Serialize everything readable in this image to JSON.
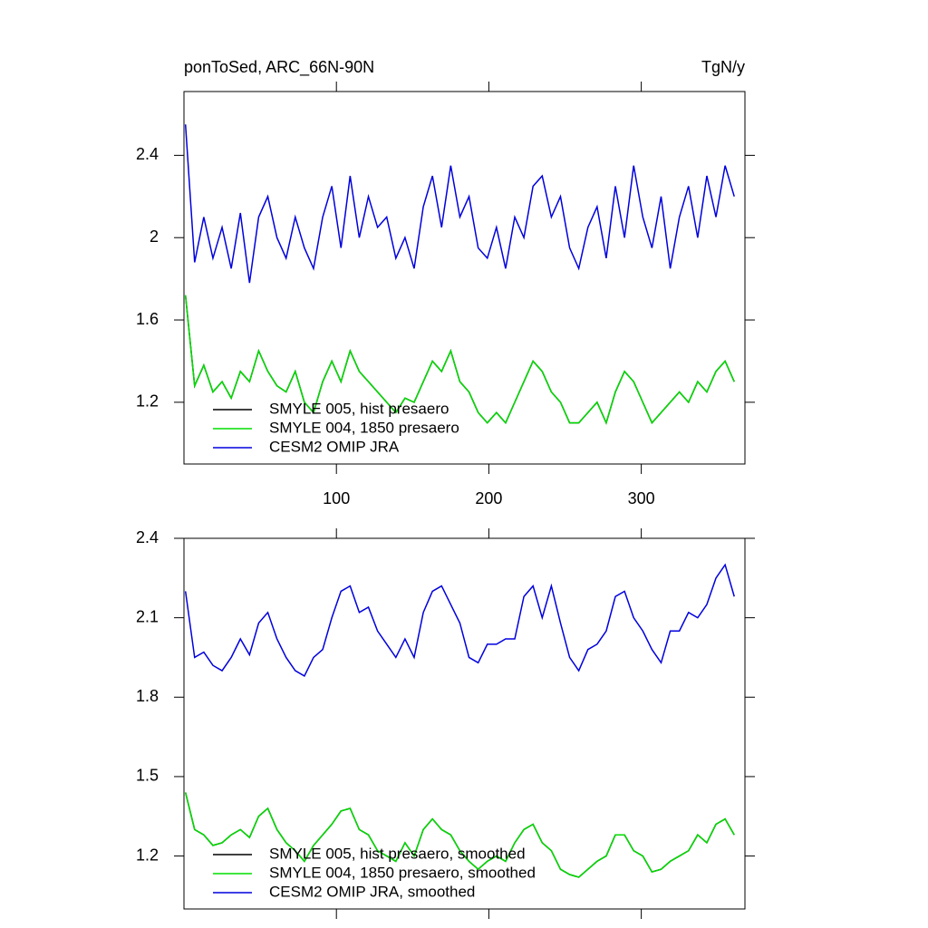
{
  "chart_data": [
    {
      "type": "line",
      "title": "ponToSed, ARC_66N-90N",
      "units_label": "TgN/y",
      "x": [
        1,
        7,
        13,
        19,
        25,
        31,
        37,
        43,
        49,
        55,
        61,
        67,
        73,
        79,
        85,
        91,
        97,
        103,
        109,
        115,
        121,
        127,
        133,
        139,
        145,
        151,
        157,
        163,
        169,
        175,
        181,
        187,
        193,
        199,
        205,
        211,
        217,
        223,
        229,
        235,
        241,
        247,
        253,
        259,
        265,
        271,
        277,
        283,
        289,
        295,
        301,
        307,
        313,
        319,
        325,
        331,
        337,
        343,
        349,
        355,
        361
      ],
      "xlim": [
        0,
        368
      ],
      "xticks": [
        100,
        200,
        300
      ],
      "xtick_labels": true,
      "ylim": [
        0.9,
        2.71
      ],
      "yticks": [
        1.2,
        1.6,
        2.0,
        2.4
      ],
      "legend": "lower left",
      "series": [
        {
          "name": "SMYLE 005, hist presaero",
          "color": "#000000",
          "values": [
            1.72,
            1.28,
            1.38,
            1.25,
            1.3,
            1.22,
            1.35,
            1.3,
            1.45,
            1.35,
            1.28,
            1.25,
            1.35,
            1.2,
            1.15,
            1.3,
            1.4,
            1.3,
            1.45,
            1.35,
            1.3,
            1.25,
            1.2,
            1.15,
            1.22,
            1.2,
            1.3,
            1.4,
            1.35,
            1.45,
            1.3,
            1.25,
            1.15,
            1.1,
            1.15,
            1.1,
            1.2,
            1.3,
            1.4,
            1.35,
            1.25,
            1.2,
            1.1,
            1.1,
            1.15,
            1.2,
            1.1,
            1.25,
            1.35,
            1.3,
            1.2,
            1.1,
            1.15,
            1.2,
            1.25,
            1.2,
            1.3,
            1.25,
            1.35,
            1.4,
            1.3
          ]
        },
        {
          "name": "SMYLE 004, 1850 presaero",
          "color": "#00dd00",
          "values": [
            1.72,
            1.28,
            1.38,
            1.25,
            1.3,
            1.22,
            1.35,
            1.3,
            1.45,
            1.35,
            1.28,
            1.25,
            1.35,
            1.2,
            1.15,
            1.3,
            1.4,
            1.3,
            1.45,
            1.35,
            1.3,
            1.25,
            1.2,
            1.15,
            1.22,
            1.2,
            1.3,
            1.4,
            1.35,
            1.45,
            1.3,
            1.25,
            1.15,
            1.1,
            1.15,
            1.1,
            1.2,
            1.3,
            1.4,
            1.35,
            1.25,
            1.2,
            1.1,
            1.1,
            1.15,
            1.2,
            1.1,
            1.25,
            1.35,
            1.3,
            1.2,
            1.1,
            1.15,
            1.2,
            1.25,
            1.2,
            1.3,
            1.25,
            1.35,
            1.4,
            1.3
          ]
        },
        {
          "name": "CESM2 OMIP JRA",
          "color": "#0000dd",
          "values": [
            2.55,
            1.88,
            2.1,
            1.9,
            2.05,
            1.85,
            2.12,
            1.78,
            2.1,
            2.2,
            2.0,
            1.9,
            2.1,
            1.95,
            1.85,
            2.1,
            2.25,
            1.95,
            2.3,
            2.0,
            2.2,
            2.05,
            2.1,
            1.9,
            2.0,
            1.85,
            2.15,
            2.3,
            2.05,
            2.35,
            2.1,
            2.2,
            1.95,
            1.9,
            2.05,
            1.85,
            2.1,
            2.0,
            2.25,
            2.3,
            2.1,
            2.2,
            1.95,
            1.85,
            2.05,
            2.15,
            1.9,
            2.25,
            2.0,
            2.35,
            2.1,
            1.95,
            2.2,
            1.85,
            2.1,
            2.25,
            2.0,
            2.3,
            2.1,
            2.35,
            2.2
          ]
        }
      ]
    },
    {
      "type": "line",
      "x": [
        1,
        7,
        13,
        19,
        25,
        31,
        37,
        43,
        49,
        55,
        61,
        67,
        73,
        79,
        85,
        91,
        97,
        103,
        109,
        115,
        121,
        127,
        133,
        139,
        145,
        151,
        157,
        163,
        169,
        175,
        181,
        187,
        193,
        199,
        205,
        211,
        217,
        223,
        229,
        235,
        241,
        247,
        253,
        259,
        265,
        271,
        277,
        283,
        289,
        295,
        301,
        307,
        313,
        319,
        325,
        331,
        337,
        343,
        349,
        355,
        361
      ],
      "xlim": [
        0,
        368
      ],
      "xticks": [
        100,
        200,
        300
      ],
      "xtick_labels": false,
      "ylim": [
        1.0,
        2.4
      ],
      "yticks": [
        1.2,
        1.5,
        1.8,
        2.1,
        2.4
      ],
      "legend": "lower left",
      "series": [
        {
          "name": "SMYLE 005, hist presaero, smoothed",
          "color": "#000000",
          "values": [
            1.44,
            1.3,
            1.28,
            1.24,
            1.25,
            1.28,
            1.3,
            1.27,
            1.35,
            1.38,
            1.3,
            1.25,
            1.22,
            1.18,
            1.24,
            1.28,
            1.32,
            1.37,
            1.38,
            1.3,
            1.28,
            1.22,
            1.2,
            1.18,
            1.25,
            1.2,
            1.3,
            1.34,
            1.3,
            1.28,
            1.22,
            1.18,
            1.15,
            1.18,
            1.2,
            1.18,
            1.25,
            1.3,
            1.32,
            1.25,
            1.22,
            1.15,
            1.13,
            1.12,
            1.15,
            1.18,
            1.2,
            1.28,
            1.28,
            1.22,
            1.2,
            1.14,
            1.15,
            1.18,
            1.2,
            1.22,
            1.28,
            1.25,
            1.32,
            1.34,
            1.28
          ]
        },
        {
          "name": "SMYLE 004, 1850 presaero, smoothed",
          "color": "#00dd00",
          "values": [
            1.44,
            1.3,
            1.28,
            1.24,
            1.25,
            1.28,
            1.3,
            1.27,
            1.35,
            1.38,
            1.3,
            1.25,
            1.22,
            1.18,
            1.24,
            1.28,
            1.32,
            1.37,
            1.38,
            1.3,
            1.28,
            1.22,
            1.2,
            1.18,
            1.25,
            1.2,
            1.3,
            1.34,
            1.3,
            1.28,
            1.22,
            1.18,
            1.15,
            1.18,
            1.2,
            1.18,
            1.25,
            1.3,
            1.32,
            1.25,
            1.22,
            1.15,
            1.13,
            1.12,
            1.15,
            1.18,
            1.2,
            1.28,
            1.28,
            1.22,
            1.2,
            1.14,
            1.15,
            1.18,
            1.2,
            1.22,
            1.28,
            1.25,
            1.32,
            1.34,
            1.28
          ]
        },
        {
          "name": "CESM2 OMIP JRA, smoothed",
          "color": "#0000dd",
          "values": [
            2.2,
            1.95,
            1.97,
            1.92,
            1.9,
            1.95,
            2.02,
            1.96,
            2.08,
            2.12,
            2.02,
            1.95,
            1.9,
            1.88,
            1.95,
            1.98,
            2.1,
            2.2,
            2.22,
            2.12,
            2.14,
            2.05,
            2.0,
            1.95,
            2.02,
            1.95,
            2.12,
            2.2,
            2.22,
            2.15,
            2.08,
            1.95,
            1.93,
            2.0,
            2.0,
            2.02,
            2.02,
            2.18,
            2.22,
            2.1,
            2.22,
            2.08,
            1.95,
            1.9,
            1.98,
            2.0,
            2.05,
            2.18,
            2.2,
            2.1,
            2.05,
            1.98,
            1.93,
            2.05,
            2.05,
            2.12,
            2.1,
            2.15,
            2.25,
            2.3,
            2.18
          ]
        }
      ]
    }
  ]
}
